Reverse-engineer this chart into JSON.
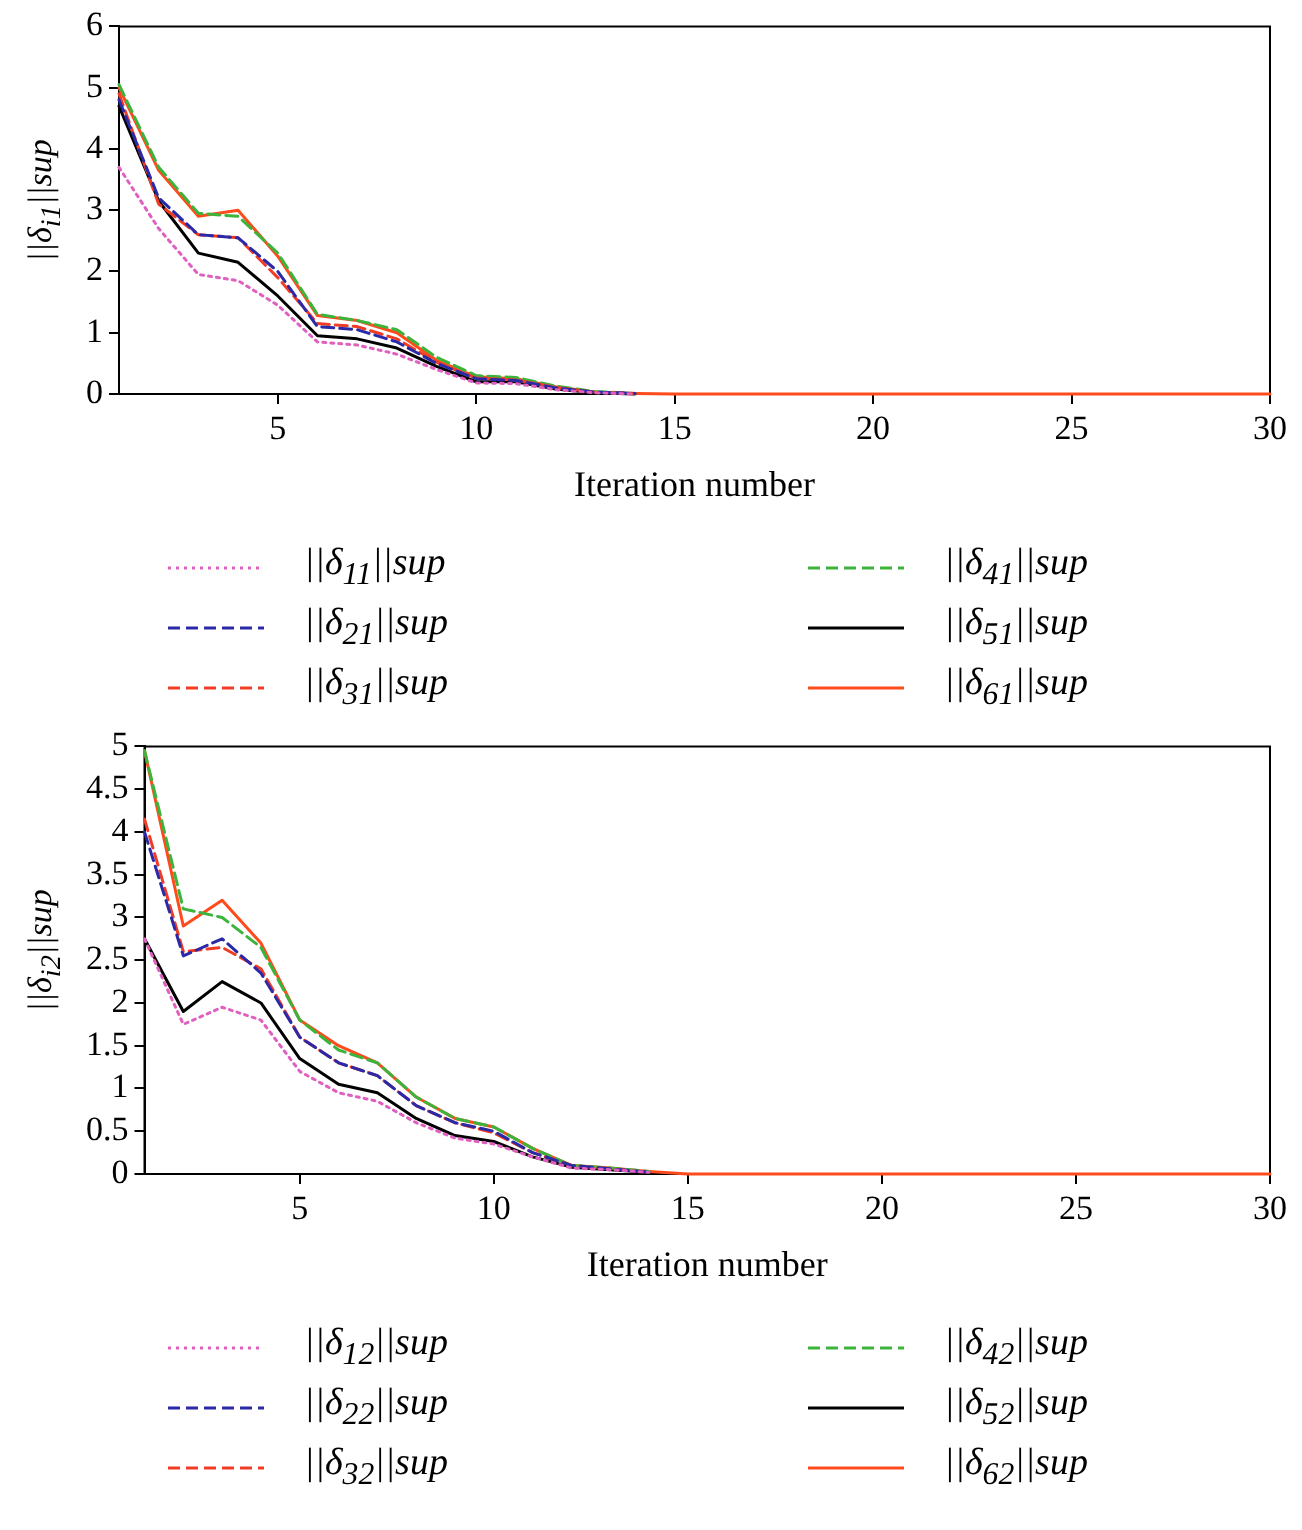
{
  "chart_data": [
    {
      "type": "line",
      "xlabel": "Iteration number",
      "ylabel": "||δ$_{i1}$||sup",
      "x": [
        1,
        2,
        3,
        4,
        5,
        6,
        7,
        8,
        9,
        10,
        11,
        12,
        13,
        14,
        15,
        16,
        17,
        18,
        19,
        20,
        21,
        22,
        23,
        24,
        25,
        26,
        27,
        28,
        29,
        30
      ],
      "xlim": [
        1,
        30
      ],
      "xticks": [
        5,
        10,
        15,
        20,
        25,
        30
      ],
      "ylim": [
        0,
        6
      ],
      "yticks": [
        0,
        1,
        2,
        3,
        4,
        5,
        6
      ],
      "grid": false,
      "legend": "bottom",
      "marker": "none",
      "series": [
        {
          "name": "||δ$_{11}$||sup",
          "color": "#e060c0",
          "line_style": "dotted",
          "values": [
            3.7,
            2.7,
            1.95,
            1.85,
            1.45,
            0.85,
            0.8,
            0.65,
            0.4,
            0.18,
            0.17,
            0.07,
            0.02,
            0,
            null,
            null,
            null,
            null,
            null,
            null,
            null,
            null,
            null,
            null,
            null,
            null,
            null,
            null,
            null,
            null
          ]
        },
        {
          "name": "||δ$_{21}$||sup",
          "color": "#2a2aa8",
          "line_style": "dashed",
          "values": [
            4.8,
            3.2,
            2.6,
            2.55,
            2.0,
            1.1,
            1.05,
            0.85,
            0.5,
            0.25,
            0.22,
            0.1,
            0.03,
            0.01,
            null,
            null,
            null,
            null,
            null,
            null,
            null,
            null,
            null,
            null,
            null,
            null,
            null,
            null,
            null,
            null
          ]
        },
        {
          "name": "||δ$_{31}$||sup",
          "color": "#f03c24",
          "line_style": "dashed",
          "values": [
            4.9,
            3.1,
            2.6,
            2.55,
            1.9,
            1.15,
            1.1,
            0.9,
            0.52,
            0.26,
            0.23,
            0.11,
            0.03,
            0.01,
            null,
            null,
            null,
            null,
            null,
            null,
            null,
            null,
            null,
            null,
            null,
            null,
            null,
            null,
            null,
            null
          ]
        },
        {
          "name": "||δ$_{41}$||sup",
          "color": "#3cb43c",
          "line_style": "dashed",
          "values": [
            5.05,
            3.7,
            2.95,
            2.9,
            2.3,
            1.3,
            1.2,
            1.05,
            0.6,
            0.3,
            0.27,
            0.13,
            0.04,
            0.01,
            null,
            null,
            null,
            null,
            null,
            null,
            null,
            null,
            null,
            null,
            null,
            null,
            null,
            null,
            null,
            null
          ]
        },
        {
          "name": "||δ$_{51}$||sup",
          "color": "#000000",
          "line_style": "solid",
          "values": [
            4.7,
            3.15,
            2.3,
            2.15,
            1.6,
            0.95,
            0.9,
            0.75,
            0.45,
            0.2,
            0.2,
            0.08,
            0.02,
            0,
            null,
            null,
            null,
            null,
            null,
            null,
            null,
            null,
            null,
            null,
            null,
            null,
            null,
            null,
            null,
            null
          ]
        },
        {
          "name": "||δ$_{61}$||sup",
          "color": "#ff4a1c",
          "line_style": "solid",
          "values": [
            5.0,
            3.65,
            2.9,
            3.0,
            2.25,
            1.28,
            1.2,
            1.0,
            0.55,
            0.28,
            0.25,
            0.12,
            0.03,
            0.01,
            0,
            0,
            0,
            0,
            0,
            0,
            0,
            0,
            0,
            0,
            0,
            0,
            0,
            0,
            0,
            0
          ]
        }
      ]
    },
    {
      "type": "line",
      "xlabel": "Iteration number",
      "ylabel": "||δ$_{i2}$||sup",
      "x": [
        1,
        2,
        3,
        4,
        5,
        6,
        7,
        8,
        9,
        10,
        11,
        12,
        13,
        14,
        15,
        16,
        17,
        18,
        19,
        20,
        21,
        22,
        23,
        24,
        25,
        26,
        27,
        28,
        29,
        30
      ],
      "xlim": [
        1,
        30
      ],
      "xticks": [
        5,
        10,
        15,
        20,
        25,
        30
      ],
      "ylim": [
        0,
        5
      ],
      "yticks": [
        0,
        0.5,
        1,
        1.5,
        2,
        2.5,
        3,
        3.5,
        4,
        4.5,
        5
      ],
      "grid": false,
      "legend": "bottom",
      "marker": "none",
      "series": [
        {
          "name": "||δ$_{12}$||sup",
          "color": "#e060c0",
          "line_style": "dotted",
          "values": [
            2.75,
            1.75,
            1.95,
            1.8,
            1.2,
            0.95,
            0.85,
            0.6,
            0.42,
            0.35,
            0.2,
            0.07,
            0.05,
            0.02,
            null,
            null,
            null,
            null,
            null,
            null,
            null,
            null,
            null,
            null,
            null,
            null,
            null,
            null,
            null,
            null
          ]
        },
        {
          "name": "||δ$_{22}$||sup",
          "color": "#2a2aa8",
          "line_style": "dashed",
          "values": [
            4.0,
            2.55,
            2.75,
            2.35,
            1.6,
            1.3,
            1.15,
            0.8,
            0.6,
            0.5,
            0.25,
            0.1,
            0.06,
            0.02,
            null,
            null,
            null,
            null,
            null,
            null,
            null,
            null,
            null,
            null,
            null,
            null,
            null,
            null,
            null,
            null
          ]
        },
        {
          "name": "||δ$_{32}$||sup",
          "color": "#f03c24",
          "line_style": "dashed",
          "values": [
            4.15,
            2.6,
            2.65,
            2.4,
            1.6,
            1.3,
            1.15,
            0.8,
            0.6,
            0.48,
            0.25,
            0.1,
            0.06,
            0.02,
            null,
            null,
            null,
            null,
            null,
            null,
            null,
            null,
            null,
            null,
            null,
            null,
            null,
            null,
            null,
            null
          ]
        },
        {
          "name": "||δ$_{42}$||sup",
          "color": "#3cb43c",
          "line_style": "dashed",
          "values": [
            4.95,
            3.1,
            3.0,
            2.65,
            1.8,
            1.45,
            1.3,
            0.9,
            0.65,
            0.55,
            0.3,
            0.1,
            0.07,
            0.03,
            null,
            null,
            null,
            null,
            null,
            null,
            null,
            null,
            null,
            null,
            null,
            null,
            null,
            null,
            null,
            null
          ]
        },
        {
          "name": "||δ$_{52}$||sup",
          "color": "#000000",
          "line_style": "solid",
          "values": [
            2.75,
            1.9,
            2.25,
            2.0,
            1.35,
            1.05,
            0.95,
            0.65,
            0.45,
            0.38,
            0.2,
            0.08,
            0.05,
            0.02,
            null,
            null,
            null,
            null,
            null,
            null,
            null,
            null,
            null,
            null,
            null,
            null,
            null,
            null,
            null,
            null
          ]
        },
        {
          "name": "||δ$_{62}$||sup",
          "color": "#ff4a1c",
          "line_style": "solid",
          "values": [
            4.95,
            2.9,
            3.2,
            2.7,
            1.8,
            1.5,
            1.3,
            0.9,
            0.65,
            0.55,
            0.3,
            0.1,
            0.07,
            0.03,
            0,
            0,
            0,
            0,
            0,
            0,
            0,
            0,
            0,
            0,
            0,
            0,
            0,
            0,
            0,
            0
          ]
        }
      ]
    }
  ]
}
